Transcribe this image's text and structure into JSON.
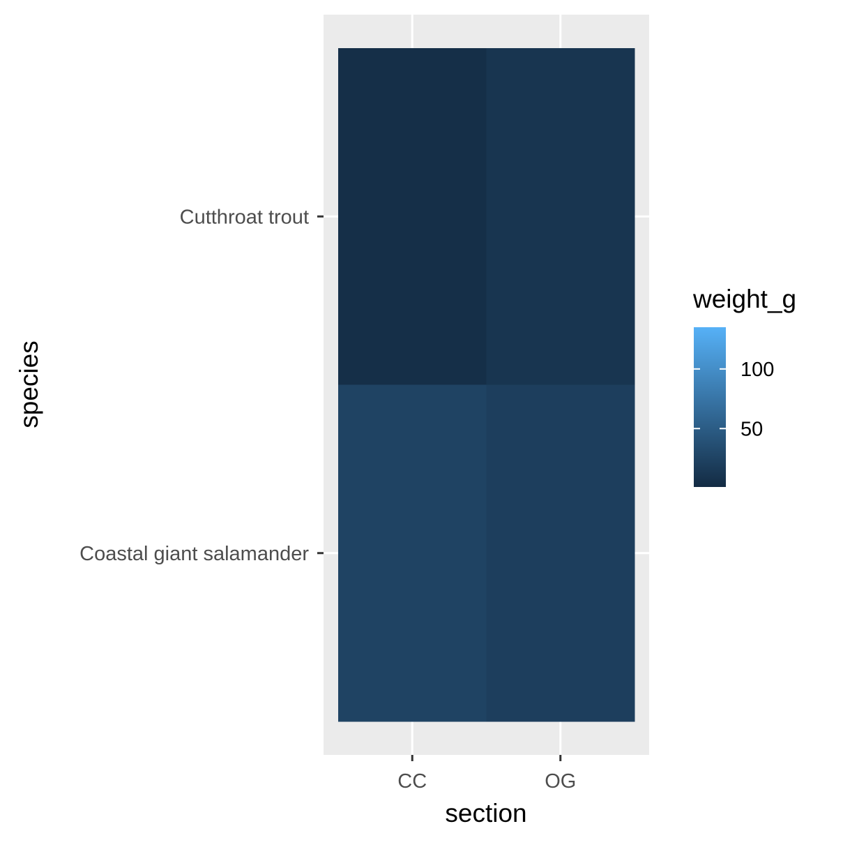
{
  "chart_data": {
    "type": "heatmap",
    "title": "",
    "xlabel": "section",
    "ylabel": "species",
    "x_categories": [
      "CC",
      "OG"
    ],
    "y_categories": [
      "Coastal giant salamander",
      "Cutthroat trout"
    ],
    "cells": [
      {
        "x": "CC",
        "y": "Cutthroat trout",
        "value": 5
      },
      {
        "x": "OG",
        "y": "Cutthroat trout",
        "value": 11
      },
      {
        "x": "CC",
        "y": "Coastal giant salamander",
        "value": 25
      },
      {
        "x": "OG",
        "y": "Coastal giant salamander",
        "value": 20
      }
    ],
    "legend": {
      "title": "weight_g",
      "placement": "right",
      "range": [
        1,
        135
      ],
      "ticks": [
        50,
        100
      ],
      "color_low": "#132B43",
      "color_high": "#56B1F7"
    },
    "grid": true,
    "panel_background": "#EBEBEB",
    "grid_color": "#FFFFFF"
  }
}
